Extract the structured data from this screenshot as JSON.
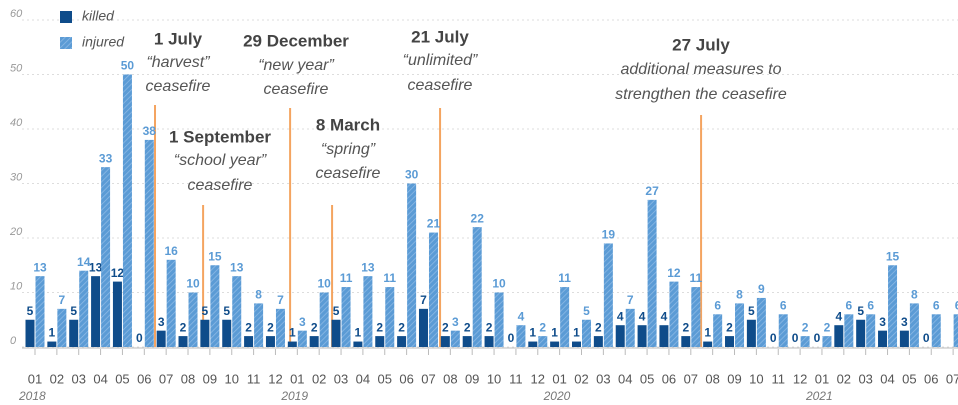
{
  "chart_data": {
    "type": "bar",
    "categories": [
      "01",
      "02",
      "03",
      "04",
      "05",
      "06",
      "07",
      "08",
      "09",
      "10",
      "11",
      "12",
      "01",
      "02",
      "03",
      "04",
      "05",
      "06",
      "07",
      "08",
      "09",
      "10",
      "11",
      "12",
      "01",
      "02",
      "03",
      "04",
      "05",
      "06",
      "07",
      "08",
      "09",
      "10",
      "11",
      "12",
      "01",
      "02",
      "03",
      "04",
      "05",
      "06",
      "07"
    ],
    "years": [
      "2018",
      "2019",
      "2020",
      "2021"
    ],
    "series": [
      {
        "name": "killed",
        "color": "#0f4c8a",
        "values": [
          5,
          1,
          5,
          13,
          12,
          0,
          3,
          2,
          5,
          5,
          2,
          2,
          1,
          2,
          5,
          1,
          2,
          2,
          7,
          2,
          2,
          2,
          0,
          1,
          1,
          1,
          2,
          4,
          4,
          4,
          2,
          1,
          2,
          5,
          0,
          0,
          0,
          4,
          5,
          3,
          3,
          0,
          null
        ]
      },
      {
        "name": "injured",
        "color": "#5b9bd5",
        "values": [
          13,
          7,
          14,
          33,
          50,
          38,
          16,
          10,
          15,
          13,
          8,
          7,
          3,
          10,
          11,
          13,
          11,
          30,
          21,
          3,
          22,
          10,
          4,
          2,
          11,
          5,
          19,
          7,
          27,
          12,
          11,
          6,
          8,
          9,
          6,
          2,
          2,
          6,
          6,
          15,
          8,
          6,
          6
        ]
      }
    ],
    "ylim": [
      0,
      60
    ],
    "yticks": [
      0,
      10,
      20,
      30,
      40,
      50,
      60
    ],
    "grid": true,
    "annotations": [
      {
        "lines": [
          "1 July",
          "“harvest”",
          "ceasefire"
        ]
      },
      {
        "lines": [
          "1 September",
          "“school year”",
          "ceasefire"
        ]
      },
      {
        "lines": [
          "29 December",
          "“new year”",
          "ceasefire"
        ]
      },
      {
        "lines": [
          "8 March",
          "“spring”",
          "ceasefire"
        ]
      },
      {
        "lines": [
          "21 July",
          "“unlimited”",
          "ceasefire"
        ]
      },
      {
        "lines": [
          "27 July",
          "additional measures to",
          "strengthen the ceasefire"
        ]
      }
    ]
  }
}
